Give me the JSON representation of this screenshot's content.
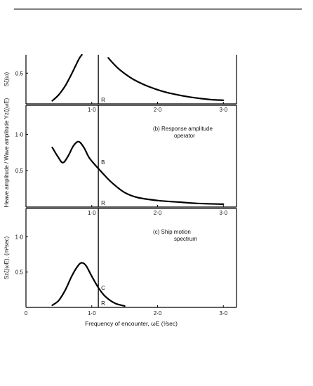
{
  "chart_data": [
    {
      "type": "line",
      "panel": "a",
      "title": "",
      "ylabel": "Sζ(ω)",
      "xlabel": "",
      "xlim": [
        0,
        3.2
      ],
      "ylim": [
        0,
        0.8
      ],
      "x_ticks": [
        "1·0",
        "2·0",
        "3·0"
      ],
      "y_ticks": [
        "0.5"
      ],
      "vline": {
        "x": 1.1,
        "label": "R"
      },
      "series": [
        {
          "x": [
            0.4,
            0.5,
            0.6,
            0.7,
            0.8,
            0.85
          ],
          "y": [
            0.05,
            0.15,
            0.3,
            0.5,
            0.72,
            0.8
          ]
        },
        {
          "x": [
            1.25,
            1.4,
            1.6,
            1.8,
            2.0,
            2.2,
            2.5,
            2.8,
            3.0
          ],
          "y": [
            0.75,
            0.58,
            0.42,
            0.31,
            0.23,
            0.17,
            0.11,
            0.07,
            0.06
          ]
        }
      ]
    },
    {
      "type": "line",
      "panel": "b",
      "title": "(b) Response amplitude\noperator",
      "ylabel": "Heave amplitude / Wave amplitude   Yzζ(ωE)",
      "xlabel": "",
      "xlim": [
        0,
        3.2
      ],
      "ylim": [
        0,
        1.4
      ],
      "x_ticks": [
        "1·0",
        "2·0",
        "3·0"
      ],
      "y_ticks": [
        "0.5",
        "1·0"
      ],
      "vline": {
        "x": 1.1,
        "label": "R"
      },
      "point_label": {
        "x": 1.1,
        "y": 0.62,
        "label": "B"
      },
      "series": [
        {
          "x": [
            0.4,
            0.48,
            0.56,
            0.64,
            0.72,
            0.8,
            0.88,
            0.96,
            1.05,
            1.15,
            1.3,
            1.5,
            1.7,
            2.0,
            2.3,
            2.6,
            3.0
          ],
          "y": [
            0.82,
            0.7,
            0.61,
            0.7,
            0.84,
            0.9,
            0.82,
            0.68,
            0.58,
            0.48,
            0.34,
            0.2,
            0.13,
            0.09,
            0.07,
            0.05,
            0.04
          ]
        }
      ]
    },
    {
      "type": "line",
      "panel": "c",
      "title": "(c) Ship motion\nspectrum",
      "ylabel": "Szζ(ωE), (m²sec)",
      "xlabel": "Frequency of encounter, ωE (¹⁄sec)",
      "xlim": [
        0,
        3.2
      ],
      "ylim": [
        0,
        1.4
      ],
      "x_ticks": [
        "0",
        "1·0",
        "2·0",
        "3·0"
      ],
      "y_ticks": [
        "0.5",
        "1·0"
      ],
      "vline": {
        "x": 1.1,
        "label": "R"
      },
      "point_label": {
        "x": 1.1,
        "y": 0.28,
        "label": "C"
      },
      "series": [
        {
          "x": [
            0.4,
            0.5,
            0.6,
            0.7,
            0.8,
            0.86,
            0.92,
            1.0,
            1.1,
            1.2,
            1.35,
            1.5
          ],
          "y": [
            0.03,
            0.1,
            0.25,
            0.45,
            0.6,
            0.63,
            0.58,
            0.44,
            0.28,
            0.16,
            0.06,
            0.02
          ]
        }
      ]
    }
  ]
}
